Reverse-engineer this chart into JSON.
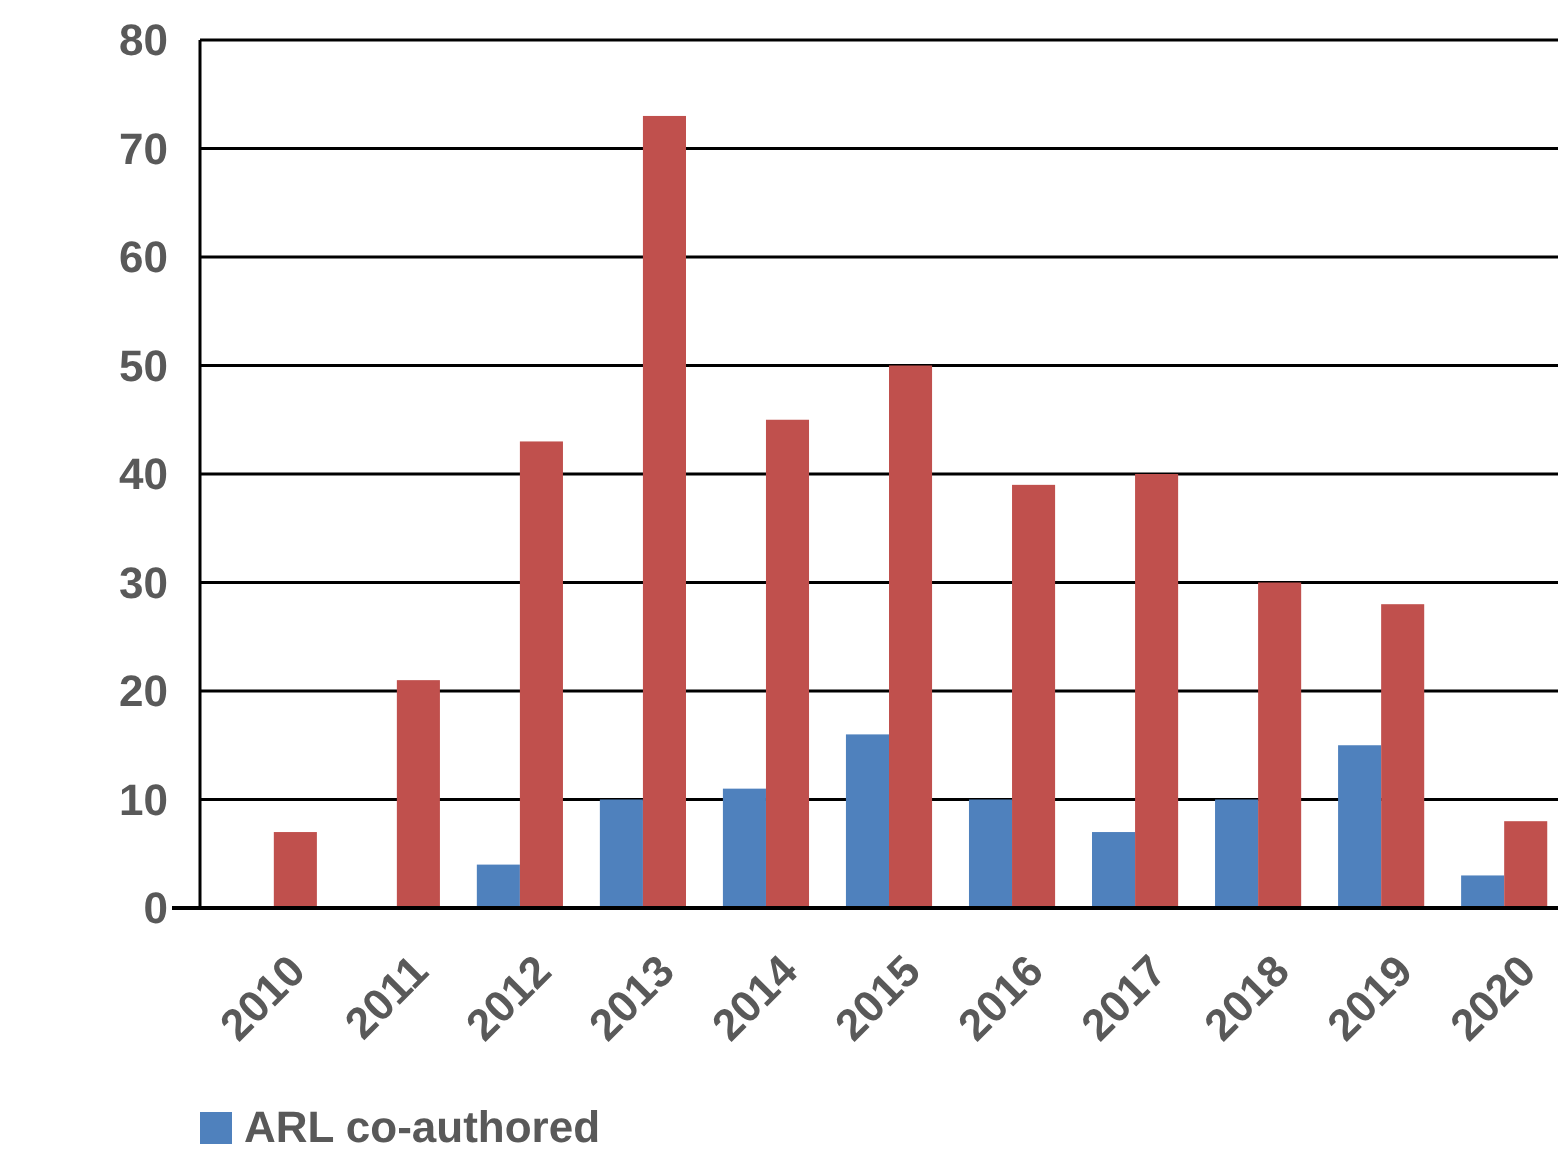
{
  "chart_data": {
    "type": "bar",
    "categories": [
      "2010",
      "2011",
      "2012",
      "2013",
      "2014",
      "2015",
      "2016",
      "2017",
      "2018",
      "2019",
      "2020"
    ],
    "series": [
      {
        "name": "ARL co-authored",
        "color": "#4f81bd",
        "values": [
          null,
          null,
          4,
          10,
          11,
          16,
          10,
          7,
          10,
          15,
          3
        ]
      },
      {
        "color": "#c0504d",
        "values": [
          7,
          21,
          43,
          73,
          45,
          50,
          39,
          40,
          30,
          28,
          8
        ]
      }
    ],
    "ylim": [
      0,
      80
    ],
    "yticks": [
      0,
      10,
      20,
      30,
      40,
      50,
      60,
      70,
      80
    ],
    "grid": "y",
    "legend": "bottom left"
  }
}
